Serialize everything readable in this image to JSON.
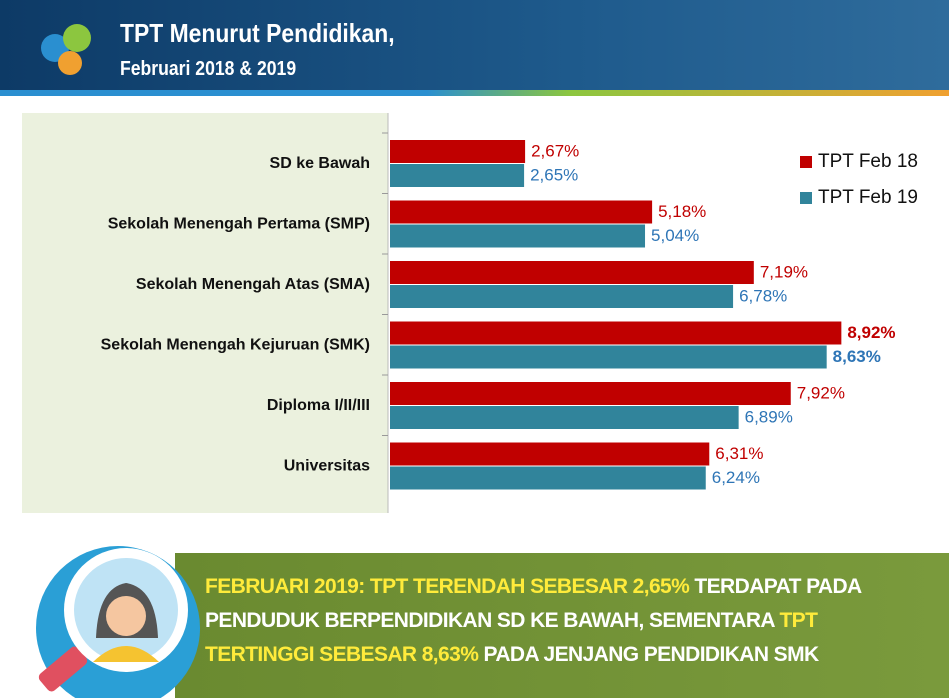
{
  "header": {
    "title": "TPT Menurut Pendidikan,",
    "subtitle": "Februari 2018 & 2019"
  },
  "chart_data": {
    "type": "hbar",
    "categories": [
      "SD ke Bawah",
      "Sekolah Menengah Pertama (SMP)",
      "Sekolah Menengah Atas (SMA)",
      "Sekolah Menengah Kejuruan (SMK)",
      "Diploma I/II/III",
      "Universitas"
    ],
    "series": [
      {
        "name": "TPT Feb 18",
        "color": "#c00000",
        "label_color": "#c00000",
        "values": [
          2.67,
          5.18,
          7.19,
          8.92,
          7.92,
          6.31
        ],
        "value_labels": [
          "2,67%",
          "5,18%",
          "7,19%",
          "8,92%",
          "7,92%",
          "6,31%"
        ]
      },
      {
        "name": "TPT Feb 19",
        "color": "#31849b",
        "label_color": "#2e75b6",
        "values": [
          2.65,
          5.04,
          6.78,
          8.63,
          6.89,
          6.24
        ],
        "value_labels": [
          "2,65%",
          "5,04%",
          "6,78%",
          "8,63%",
          "6,89%",
          "6,24%"
        ]
      }
    ],
    "xlim": [
      0,
      10
    ],
    "highlight_category": 3,
    "legend": "top-right"
  },
  "callout": {
    "segments": [
      {
        "text": "FEBRUARI 2019: TPT TERENDAH SEBESAR 2,65%",
        "highlight": true
      },
      {
        "text": " TERDAPAT PADA PENDUDUK BERPENDIDIKAN SD KE BAWAH, SEMENTARA ",
        "highlight": false
      },
      {
        "text": "TPT TERTINGGI SEBESAR 8,63%",
        "highlight": true
      },
      {
        "text": " PADA JENJANG PENDIDIKAN SMK",
        "highlight": false
      }
    ]
  }
}
